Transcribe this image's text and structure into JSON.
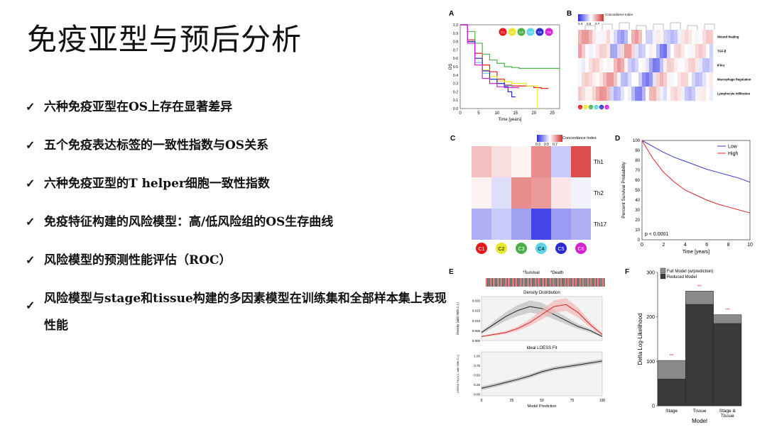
{
  "slide": {
    "title": "免疫亚型与预后分析",
    "bullets": [
      "六种免疫亚型在OS上存在显著差异",
      "五个免疫表达标签的一致性指数与OS关系",
      "六种免疫亚型的T helper细胞一致性指数",
      "免疫特征构建的风险模型：高/低风险组的OS生存曲线",
      "风险模型的预测性能评估（ROC）",
      "风险模型与stage和tissue构建的多因素模型在训练集和全部样本集上表现性能"
    ]
  },
  "colors": {
    "C1": "#e41a1c",
    "C2": "#e8e82a",
    "C3": "#4daf4a",
    "C4": "#5bd3e8",
    "C5": "#2a2ad0",
    "C6": "#d321d3",
    "low": "#3b3bd6",
    "high": "#d62828"
  },
  "chart_data": [
    {
      "panel": "A",
      "type": "line",
      "xlabel": "Time [years]",
      "ylabel": "OS",
      "xlim": [
        0,
        27
      ],
      "ylim": [
        0,
        1
      ],
      "xticks": [
        "0",
        "5",
        "10",
        "15",
        "20",
        "25"
      ],
      "yticks": [
        "0.0",
        "0.1",
        "0.2",
        "0.3",
        "0.4",
        "0.5",
        "0.6",
        "0.7",
        "0.8",
        "0.9",
        "1.0"
      ],
      "legend": [
        "C1",
        "C2",
        "C3",
        "C4",
        "C5",
        "C6"
      ],
      "series": [
        {
          "name": "C1",
          "x": [
            0,
            2,
            4,
            6,
            8,
            10,
            12,
            14,
            16,
            20,
            22,
            24
          ],
          "y": [
            1,
            0.82,
            0.66,
            0.52,
            0.44,
            0.35,
            0.28,
            0.27,
            0.27,
            0.25,
            0.24,
            0.24
          ]
        },
        {
          "name": "C2",
          "x": [
            0,
            2,
            4,
            6,
            8,
            10,
            12,
            14,
            16,
            18,
            20,
            21
          ],
          "y": [
            1,
            0.8,
            0.6,
            0.46,
            0.38,
            0.33,
            0.32,
            0.3,
            0.3,
            0.27,
            0.27,
            0
          ]
        },
        {
          "name": "C3",
          "x": [
            0,
            2,
            4,
            6,
            8,
            10,
            12,
            14,
            16,
            20,
            24,
            27
          ],
          "y": [
            1,
            0.92,
            0.78,
            0.65,
            0.58,
            0.54,
            0.5,
            0.49,
            0.48,
            0.48,
            0.48,
            0.48
          ]
        },
        {
          "name": "C4",
          "x": [
            0,
            2,
            4,
            6,
            8,
            10,
            12,
            14,
            16
          ],
          "y": [
            1,
            0.78,
            0.55,
            0.42,
            0.35,
            0.3,
            0.27,
            0.25,
            0.25
          ]
        },
        {
          "name": "C5",
          "x": [
            0,
            2,
            4,
            6,
            8,
            10,
            12,
            13,
            14,
            15
          ],
          "y": [
            1,
            0.8,
            0.6,
            0.45,
            0.35,
            0.3,
            0.26,
            0.2,
            0.14,
            0.14
          ]
        },
        {
          "name": "C6",
          "x": [
            0,
            2,
            4,
            6,
            8,
            10,
            12,
            14,
            16
          ],
          "y": [
            1,
            0.78,
            0.52,
            0.36,
            0.3,
            0.26,
            0.25,
            0.25,
            0.25
          ]
        }
      ]
    },
    {
      "panel": "B",
      "type": "heatmap",
      "legend_title": "Concordance Index",
      "scale_ticks": [
        "0.3",
        "0.5",
        "0.7"
      ],
      "rows": [
        "Wound Healing",
        "TGF-β",
        "IFN-γ",
        "Macrophage Regulation",
        "Lymphocyte Infiltration"
      ],
      "col_groups": [
        "C1",
        "C2",
        "C3",
        "C4",
        "C5",
        "C6"
      ]
    },
    {
      "panel": "C",
      "type": "heatmap",
      "legend_title": "Concordance Index",
      "scale_ticks": [
        "0.3",
        "0.5",
        "0.7"
      ],
      "rows": [
        "Th1",
        "Th2",
        "Th17"
      ],
      "cols": [
        "C1",
        "C2",
        "C3",
        "C4",
        "C5",
        "C6"
      ],
      "values": [
        [
          0.6,
          0.55,
          0.52,
          0.68,
          0.42,
          0.78
        ],
        [
          0.52,
          0.45,
          0.68,
          0.66,
          0.54,
          0.48
        ],
        [
          0.38,
          0.42,
          0.36,
          0.22,
          0.35,
          0.38
        ]
      ]
    },
    {
      "panel": "D",
      "type": "line",
      "xlabel": "Time [years]",
      "ylabel": "Percent Survival Probability",
      "xlim": [
        0,
        10
      ],
      "ylim": [
        0,
        100
      ],
      "xticks": [
        "0",
        "2",
        "4",
        "6",
        "8",
        "10"
      ],
      "yticks": [
        "0",
        "10",
        "20",
        "30",
        "40",
        "50",
        "60",
        "70",
        "80",
        "90",
        "100"
      ],
      "annotation": "p < 0.0001",
      "series": [
        {
          "name": "Low",
          "x": [
            0,
            1,
            2,
            3,
            4,
            5,
            6,
            7,
            8,
            9,
            10
          ],
          "y": [
            100,
            94,
            88,
            83,
            79,
            75,
            71,
            68,
            65,
            62,
            58
          ]
        },
        {
          "name": "High",
          "x": [
            0,
            1,
            2,
            3,
            4,
            5,
            6,
            7,
            8,
            9,
            10
          ],
          "y": [
            100,
            82,
            68,
            58,
            50,
            45,
            40,
            36,
            33,
            30,
            27
          ]
        }
      ]
    },
    {
      "panel": "E",
      "type": "line",
      "legend": [
        "Survival",
        "Death"
      ],
      "top_title": "Density Distribution",
      "top_ylabel": "Density (with 95th C.I.)",
      "top_yticks": [
        "0.000",
        "0.005",
        "0.010",
        "0.015",
        "0.020"
      ],
      "bottom_title": "Ideal LOESS Fit",
      "bottom_ylabel": "LOESS Fit (0-1, with 95th C.I.)",
      "bottom_yticks": [
        "0.00",
        "0.25",
        "0.50",
        "0.75",
        "1.00"
      ],
      "xlabel": "Model Prediction",
      "xticks": [
        "0",
        "25",
        "50",
        "75",
        "100"
      ],
      "series": [
        {
          "name": "Survival",
          "x": [
            0,
            10,
            20,
            30,
            40,
            50,
            60,
            70,
            80,
            90,
            100
          ],
          "y": [
            0.004,
            0.008,
            0.012,
            0.015,
            0.017,
            0.016,
            0.013,
            0.01,
            0.007,
            0.005,
            0.002
          ]
        },
        {
          "name": "Death",
          "x": [
            0,
            10,
            20,
            30,
            40,
            50,
            60,
            70,
            80,
            90,
            100
          ],
          "y": [
            0.002,
            0.003,
            0.004,
            0.006,
            0.009,
            0.013,
            0.017,
            0.018,
            0.014,
            0.008,
            0.003
          ]
        },
        {
          "name": "LOESS",
          "x": [
            0,
            10,
            20,
            30,
            40,
            50,
            60,
            70,
            80,
            90,
            100
          ],
          "y": [
            0.15,
            0.22,
            0.3,
            0.38,
            0.47,
            0.58,
            0.66,
            0.71,
            0.76,
            0.81,
            0.86
          ]
        }
      ]
    },
    {
      "panel": "F",
      "type": "bar",
      "xlabel": "Model",
      "ylabel": "Delta Log-Likelihood",
      "ylim": [
        0,
        300
      ],
      "yticks": [
        "0",
        "100",
        "200",
        "300"
      ],
      "categories": [
        "Stage",
        "Tissue",
        "Stage & Tissue"
      ],
      "legend": [
        "Full Model (w/prediction)",
        "Reduced Model"
      ],
      "series": [
        {
          "name": "Full Model (w/prediction)",
          "values": [
            102,
            258,
            205
          ]
        },
        {
          "name": "Reduced Model",
          "values": [
            60,
            228,
            185
          ]
        }
      ],
      "significance": [
        "***",
        "***",
        "***"
      ]
    }
  ]
}
